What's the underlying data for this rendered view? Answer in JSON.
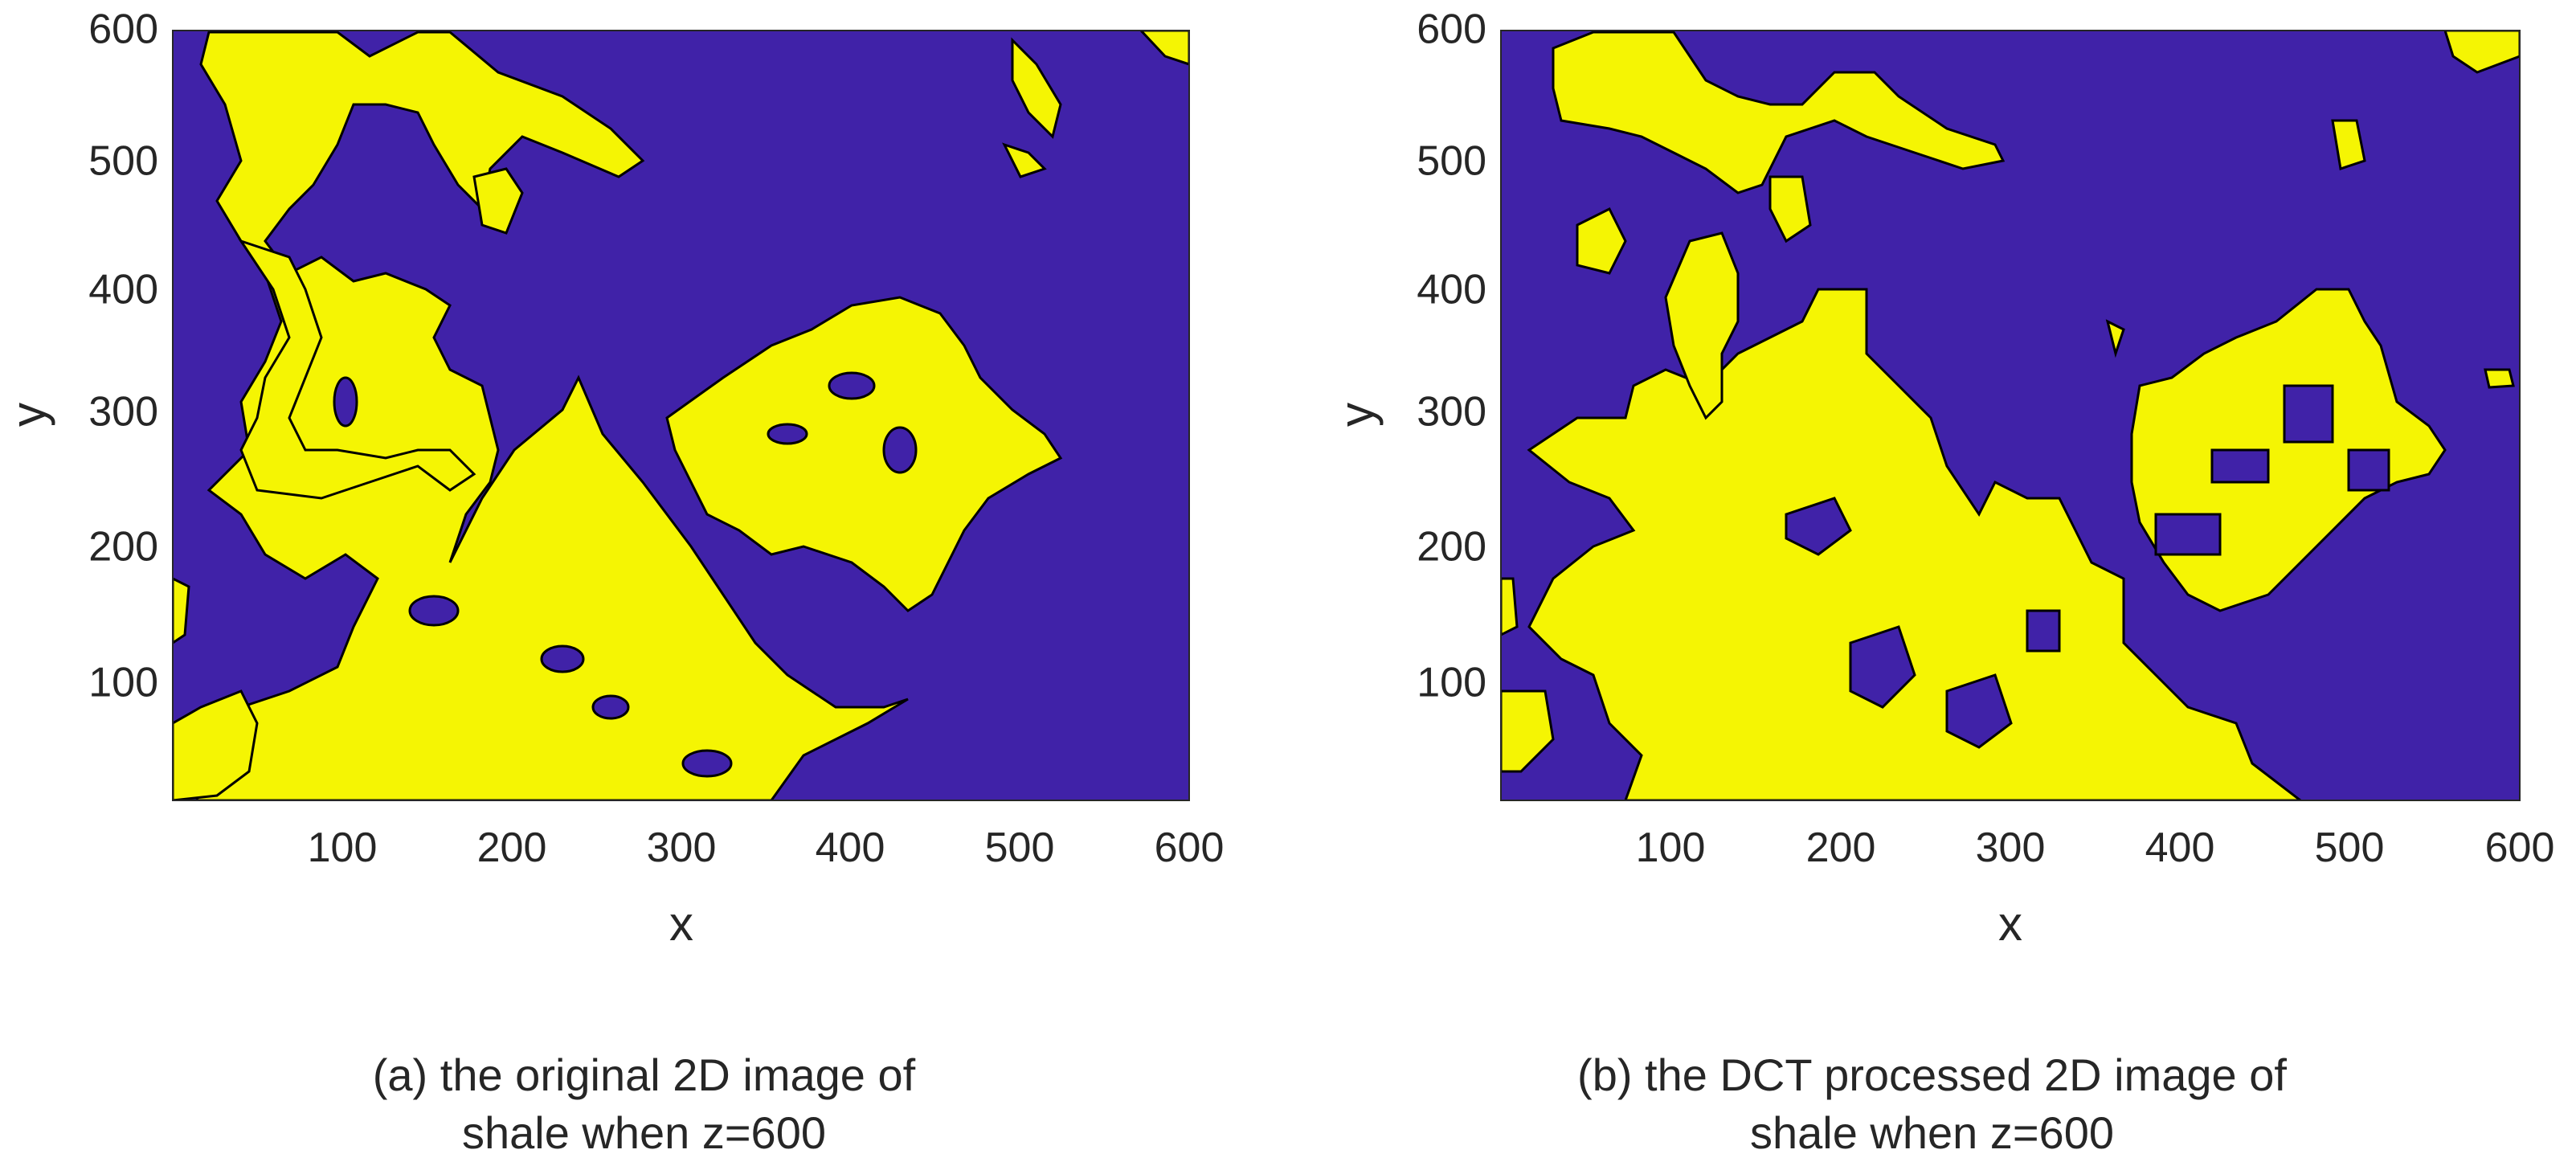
{
  "colors": {
    "background_phase": "#4022A8",
    "foreground_phase": "#F5F503",
    "edge": "#000000",
    "axis": "#262626"
  },
  "chart_data": [
    {
      "type": "heatmap",
      "title": "",
      "xlabel": "x",
      "ylabel": "y",
      "xlim": [
        1,
        600
      ],
      "ylim": [
        1,
        600
      ],
      "xticks": [
        "100",
        "200",
        "300",
        "400",
        "500",
        "600"
      ],
      "yticks": [
        "100",
        "200",
        "300",
        "400",
        "500",
        "600"
      ],
      "caption": [
        "(a) the original 2D image of",
        "shale when z=600"
      ],
      "style": "smooth"
    },
    {
      "type": "heatmap",
      "title": "",
      "xlabel": "x",
      "ylabel": "y",
      "xlim": [
        1,
        600
      ],
      "ylim": [
        1,
        600
      ],
      "xticks": [
        "100",
        "200",
        "300",
        "400",
        "500",
        "600"
      ],
      "yticks": [
        "100",
        "200",
        "300",
        "400",
        "500",
        "600"
      ],
      "caption": [
        "(b) the DCT processed 2D image of",
        "shale when z=600"
      ],
      "style": "blocky"
    }
  ]
}
